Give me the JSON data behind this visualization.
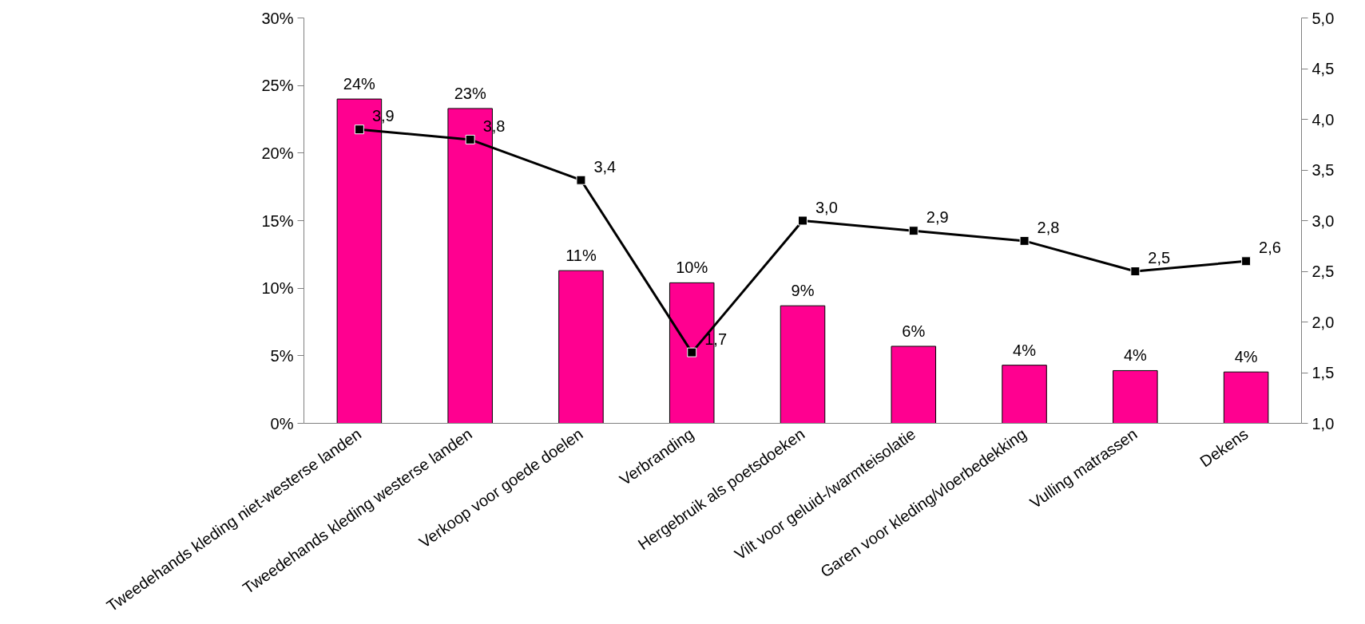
{
  "chart_data": {
    "type": "bar",
    "categories": [
      "Tweedehands kleding niet-westerse landen",
      "Tweedehands kleding westerse landen",
      "Verkoop voor goede doelen",
      "Verbranding",
      "Hergebruik als poetsdoeken",
      "Vilt voor geluid-/warmteisolatie",
      "Garen voor kleding/vloerbedekking",
      "Vulling matrassen",
      "Dekens"
    ],
    "series": [
      {
        "color": "#ff0090",
        "values": [
          24,
          23.3,
          11.3,
          10.4,
          8.7,
          5.7,
          4.3,
          3.9,
          3.8
        ],
        "value_labels": [
          "24%",
          "23%",
          "11%",
          "10%",
          "9%",
          "6%",
          "4%",
          "4%",
          "4%"
        ]
      },
      {
        "type": "line",
        "axis": "y2",
        "color": "#000000",
        "values": [
          3.9,
          3.8,
          3.4,
          1.7,
          3.0,
          2.9,
          2.8,
          2.5,
          2.6
        ],
        "value_labels": [
          "3,9",
          "3,8",
          "3,4",
          "1,7",
          "3,0",
          "2,9",
          "2,8",
          "2,5",
          "2,6"
        ]
      }
    ],
    "ylim": [
      0,
      30
    ],
    "yticks": [
      {
        "value": 0,
        "label": "0%"
      },
      {
        "value": 5,
        "label": "5%"
      },
      {
        "value": 10,
        "label": "10%"
      },
      {
        "value": 15,
        "label": "15%"
      },
      {
        "value": 20,
        "label": "20%"
      },
      {
        "value": 25,
        "label": "25%"
      },
      {
        "value": 30,
        "label": "30%"
      }
    ],
    "y2lim": [
      1,
      5
    ],
    "y2ticks": [
      {
        "value": 1,
        "label": "1,0"
      },
      {
        "value": 1.5,
        "label": "1,5"
      },
      {
        "value": 2,
        "label": "2,0"
      },
      {
        "value": 2.5,
        "label": "2,5"
      },
      {
        "value": 3,
        "label": "3,0"
      },
      {
        "value": 3.5,
        "label": "3,5"
      },
      {
        "value": 4,
        "label": "4,0"
      },
      {
        "value": 4.5,
        "label": "4,5"
      },
      {
        "value": 5,
        "label": "5,0"
      }
    ],
    "marker": "square",
    "grid": false
  }
}
